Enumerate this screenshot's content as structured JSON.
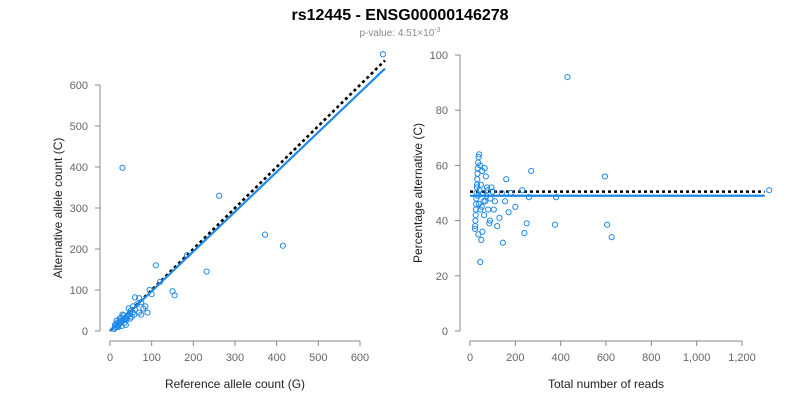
{
  "colors": {
    "points": "#1f8ae6",
    "fit": "#1f8ae6",
    "reference": "#000000",
    "axis": "#888888",
    "text": "#666666"
  },
  "header": {
    "title": "rs12445 - ENSG00000146278",
    "pvalue_prefix": "p-value: 4.51×10",
    "pvalue_exponent": "-3"
  },
  "chart_data": [
    {
      "type": "scatter",
      "xlabel": "Reference allele count (G)",
      "ylabel": "Alternative allele count (C)",
      "xlim": [
        0,
        660
      ],
      "ylim": [
        0,
        650
      ],
      "xticks": [
        "0",
        "100",
        "200",
        "300",
        "400",
        "500",
        "600"
      ],
      "yticks": [
        "0",
        "100",
        "200",
        "300",
        "400",
        "500",
        "600"
      ],
      "grid": false,
      "points": [
        [
          30,
          398
        ],
        [
          655,
          675
        ],
        [
          262,
          330
        ],
        [
          372,
          235
        ],
        [
          415,
          208
        ],
        [
          232,
          145
        ],
        [
          110,
          160
        ],
        [
          150,
          97
        ],
        [
          155,
          87
        ],
        [
          185,
          185
        ],
        [
          120,
          120
        ],
        [
          95,
          100
        ],
        [
          100,
          90
        ],
        [
          70,
          80
        ],
        [
          60,
          82
        ],
        [
          75,
          70
        ],
        [
          80,
          55
        ],
        [
          85,
          60
        ],
        [
          90,
          45
        ],
        [
          70,
          45
        ],
        [
          75,
          40
        ],
        [
          60,
          52
        ],
        [
          55,
          60
        ],
        [
          65,
          65
        ],
        [
          50,
          50
        ],
        [
          55,
          45
        ],
        [
          45,
          40
        ],
        [
          40,
          35
        ],
        [
          35,
          30
        ],
        [
          30,
          25
        ],
        [
          25,
          20
        ],
        [
          20,
          15
        ],
        [
          18,
          12
        ],
        [
          15,
          10
        ],
        [
          12,
          8
        ],
        [
          10,
          5
        ],
        [
          22,
          18
        ],
        [
          28,
          22
        ],
        [
          32,
          28
        ],
        [
          38,
          30
        ],
        [
          42,
          38
        ],
        [
          48,
          44
        ],
        [
          52,
          35
        ],
        [
          58,
          40
        ],
        [
          35,
          20
        ],
        [
          25,
          25
        ],
        [
          18,
          20
        ],
        [
          30,
          40
        ],
        [
          45,
          55
        ],
        [
          40,
          28
        ],
        [
          20,
          10
        ],
        [
          12,
          15
        ],
        [
          15,
          18
        ],
        [
          28,
          12
        ],
        [
          38,
          15
        ],
        [
          23,
          30
        ],
        [
          16,
          25
        ],
        [
          33,
          38
        ],
        [
          27,
          33
        ],
        [
          48,
          30
        ]
      ],
      "fit": {
        "slope": 0.97,
        "intercept": 0
      },
      "reference": {
        "slope": 1,
        "intercept": 0
      }
    },
    {
      "type": "scatter",
      "xlabel": "Total number of reads",
      "ylabel": "Percentage alternative (C)",
      "xlim": [
        0,
        1300
      ],
      "ylim": [
        0,
        100
      ],
      "xticks": [
        "0",
        "200",
        "400",
        "600",
        "800",
        "1,000",
        "1,200"
      ],
      "yticks": [
        "0",
        "20",
        "40",
        "60",
        "80",
        "100"
      ],
      "grid": false,
      "points": [
        [
          430,
          92
        ],
        [
          1320,
          51
        ],
        [
          595,
          56
        ],
        [
          605,
          38.5
        ],
        [
          625,
          34
        ],
        [
          380,
          48.5
        ],
        [
          375,
          38.5
        ],
        [
          270,
          58
        ],
        [
          260,
          48.5
        ],
        [
          250,
          39
        ],
        [
          240,
          35.5
        ],
        [
          230,
          51
        ],
        [
          200,
          45
        ],
        [
          180,
          50
        ],
        [
          170,
          43
        ],
        [
          160,
          55
        ],
        [
          155,
          47
        ],
        [
          145,
          32
        ],
        [
          140,
          50
        ],
        [
          130,
          41
        ],
        [
          120,
          38
        ],
        [
          110,
          47
        ],
        [
          100,
          50.5
        ],
        [
          90,
          48
        ],
        [
          85,
          39
        ],
        [
          80,
          44
        ],
        [
          75,
          52
        ],
        [
          70,
          56
        ],
        [
          65,
          59
        ],
        [
          60,
          47
        ],
        [
          55,
          36
        ],
        [
          50,
          33
        ],
        [
          45,
          25
        ],
        [
          40,
          64
        ],
        [
          38,
          63
        ],
        [
          36,
          61
        ],
        [
          34,
          59
        ],
        [
          33,
          57
        ],
        [
          32,
          55
        ],
        [
          31,
          53
        ],
        [
          30,
          52
        ],
        [
          29,
          50
        ],
        [
          28,
          48
        ],
        [
          27,
          46
        ],
        [
          26,
          44
        ],
        [
          25,
          42
        ],
        [
          24,
          40
        ],
        [
          23,
          38
        ],
        [
          22,
          37
        ],
        [
          35,
          49
        ],
        [
          42,
          51
        ],
        [
          48,
          53
        ],
        [
          52,
          45
        ],
        [
          58,
          50
        ],
        [
          62,
          42
        ],
        [
          67,
          47
        ],
        [
          72,
          49
        ],
        [
          78,
          51
        ],
        [
          88,
          40
        ],
        [
          95,
          52
        ],
        [
          105,
          44
        ],
        [
          46,
          44
        ],
        [
          54,
          58
        ],
        [
          44,
          60
        ],
        [
          39,
          46
        ],
        [
          37,
          35
        ]
      ],
      "fit": {
        "y": 49
      },
      "reference": {
        "y": 50.5
      }
    }
  ]
}
